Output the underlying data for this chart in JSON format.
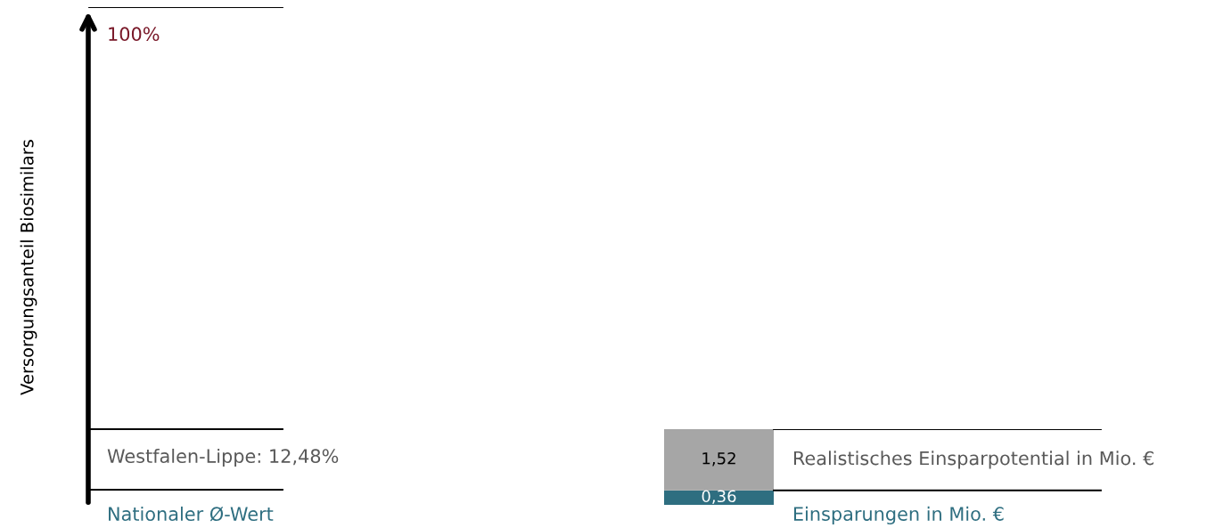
{
  "chart_data": [
    {
      "type": "other",
      "ylabel": "Versorgungsanteil Biosimilars",
      "annotations": [
        "100%",
        "Westfalen-Lippe: 12,48%",
        "Nationaler Ø-Wert"
      ]
    },
    {
      "type": "bar",
      "stacked": true,
      "categories": [
        null
      ],
      "legend": false,
      "series": [
        {
          "name": "Einsparungen in Mio. €",
          "color": "#2e6e80",
          "values": [
            0.36
          ],
          "value_labels": [
            "0,36"
          ]
        },
        {
          "name": "Realistisches Einsparpotential in Mio. €",
          "color": "#a6a6a6",
          "values": [
            1.52
          ],
          "value_labels": [
            "1,52"
          ]
        }
      ]
    }
  ]
}
